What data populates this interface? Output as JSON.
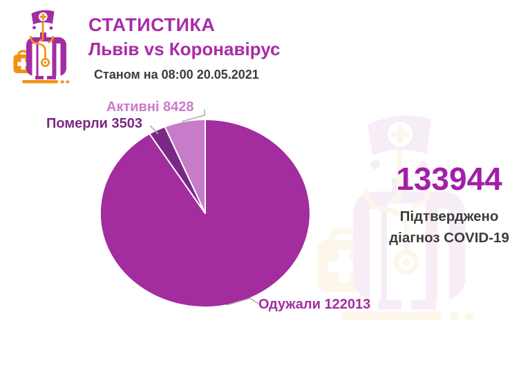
{
  "header": {
    "title": "СТАТИСТИКА",
    "subtitle": "Львів vs Коронавірус",
    "as_of": "Станом на 08:00 20.05.2021"
  },
  "summary": {
    "total": "133944",
    "caption_line1": "Підтверджено",
    "caption_line2": "діагноз COVID-19"
  },
  "chart_data": {
    "type": "pie",
    "title": "Львів vs Коронавірус — COVID-19",
    "total_confirmed": 133944,
    "slices": [
      {
        "key": "recovered",
        "label": "Одужали",
        "value": 122013,
        "color": "#A32C9F"
      },
      {
        "key": "deaths",
        "label": "Померли",
        "value": 3503,
        "color": "#7A2884"
      },
      {
        "key": "active",
        "label": "Активні",
        "value": 8428,
        "color": "#C87BC8"
      }
    ],
    "labels": {
      "active": "Активні 8428",
      "deaths": "Померли 3503",
      "recovered": "Одужали 122013"
    },
    "start_angle_deg": 0,
    "direction": "clockwise",
    "legend": "none"
  },
  "icons": {
    "logo": "doctor-mascot-icon",
    "watermark": "doctor-mascot-watermark-icon"
  },
  "colors": {
    "title": "#A92BA9",
    "number": "#A21FA8",
    "dark_text": "#3C3C3C",
    "leader_line": "#ADADAD",
    "logo_purple": "#A32CA5",
    "logo_orange": "#F0930F",
    "background": "#FFFFFF"
  }
}
